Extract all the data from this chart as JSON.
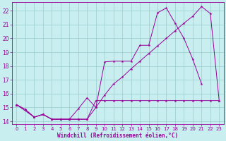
{
  "background_color": "#c8eef0",
  "grid_color": "#99cccc",
  "line_color": "#990099",
  "xlabel": "Windchill (Refroidissement éolien,°C)",
  "xlim": [
    -0.5,
    23.5
  ],
  "ylim": [
    13.8,
    22.6
  ],
  "yticks": [
    14,
    15,
    16,
    17,
    18,
    19,
    20,
    21,
    22
  ],
  "xticks": [
    0,
    1,
    2,
    3,
    4,
    5,
    6,
    7,
    8,
    9,
    10,
    11,
    12,
    13,
    14,
    15,
    16,
    17,
    18,
    19,
    20,
    21,
    22,
    23
  ],
  "line1_x": [
    0,
    1,
    2,
    3,
    4,
    5,
    6,
    7,
    8,
    9,
    10,
    11,
    12,
    13,
    14,
    15,
    16,
    17,
    18,
    19,
    20,
    21,
    22,
    23
  ],
  "line1_y": [
    15.2,
    14.85,
    14.3,
    14.5,
    14.15,
    14.15,
    14.15,
    14.15,
    14.15,
    15.5,
    15.5,
    15.5,
    15.5,
    15.5,
    15.5,
    15.5,
    15.5,
    15.5,
    15.5,
    15.5,
    15.5,
    15.5,
    15.5,
    15.5
  ],
  "line2_x": [
    0,
    1,
    2,
    3,
    4,
    5,
    6,
    7,
    8,
    9,
    10,
    11,
    12,
    13,
    14,
    15,
    16,
    17,
    18,
    19,
    20,
    21
  ],
  "line2_y": [
    15.2,
    14.85,
    14.3,
    14.5,
    14.15,
    14.15,
    14.15,
    14.9,
    15.7,
    15.0,
    18.3,
    18.35,
    18.35,
    18.35,
    19.5,
    19.5,
    21.85,
    22.2,
    21.1,
    20.0,
    18.5,
    16.7
  ],
  "line3_x": [
    0,
    2,
    3,
    4,
    5,
    6,
    7,
    8,
    9,
    10,
    11,
    12,
    13,
    14,
    15,
    16,
    17,
    18,
    19,
    20,
    21,
    22,
    23
  ],
  "line3_y": [
    15.2,
    14.3,
    14.5,
    14.15,
    14.15,
    14.15,
    14.15,
    14.15,
    15.0,
    15.9,
    16.7,
    17.2,
    17.8,
    18.35,
    18.9,
    19.45,
    20.0,
    20.55,
    21.1,
    21.6,
    22.3,
    21.8,
    15.5
  ]
}
